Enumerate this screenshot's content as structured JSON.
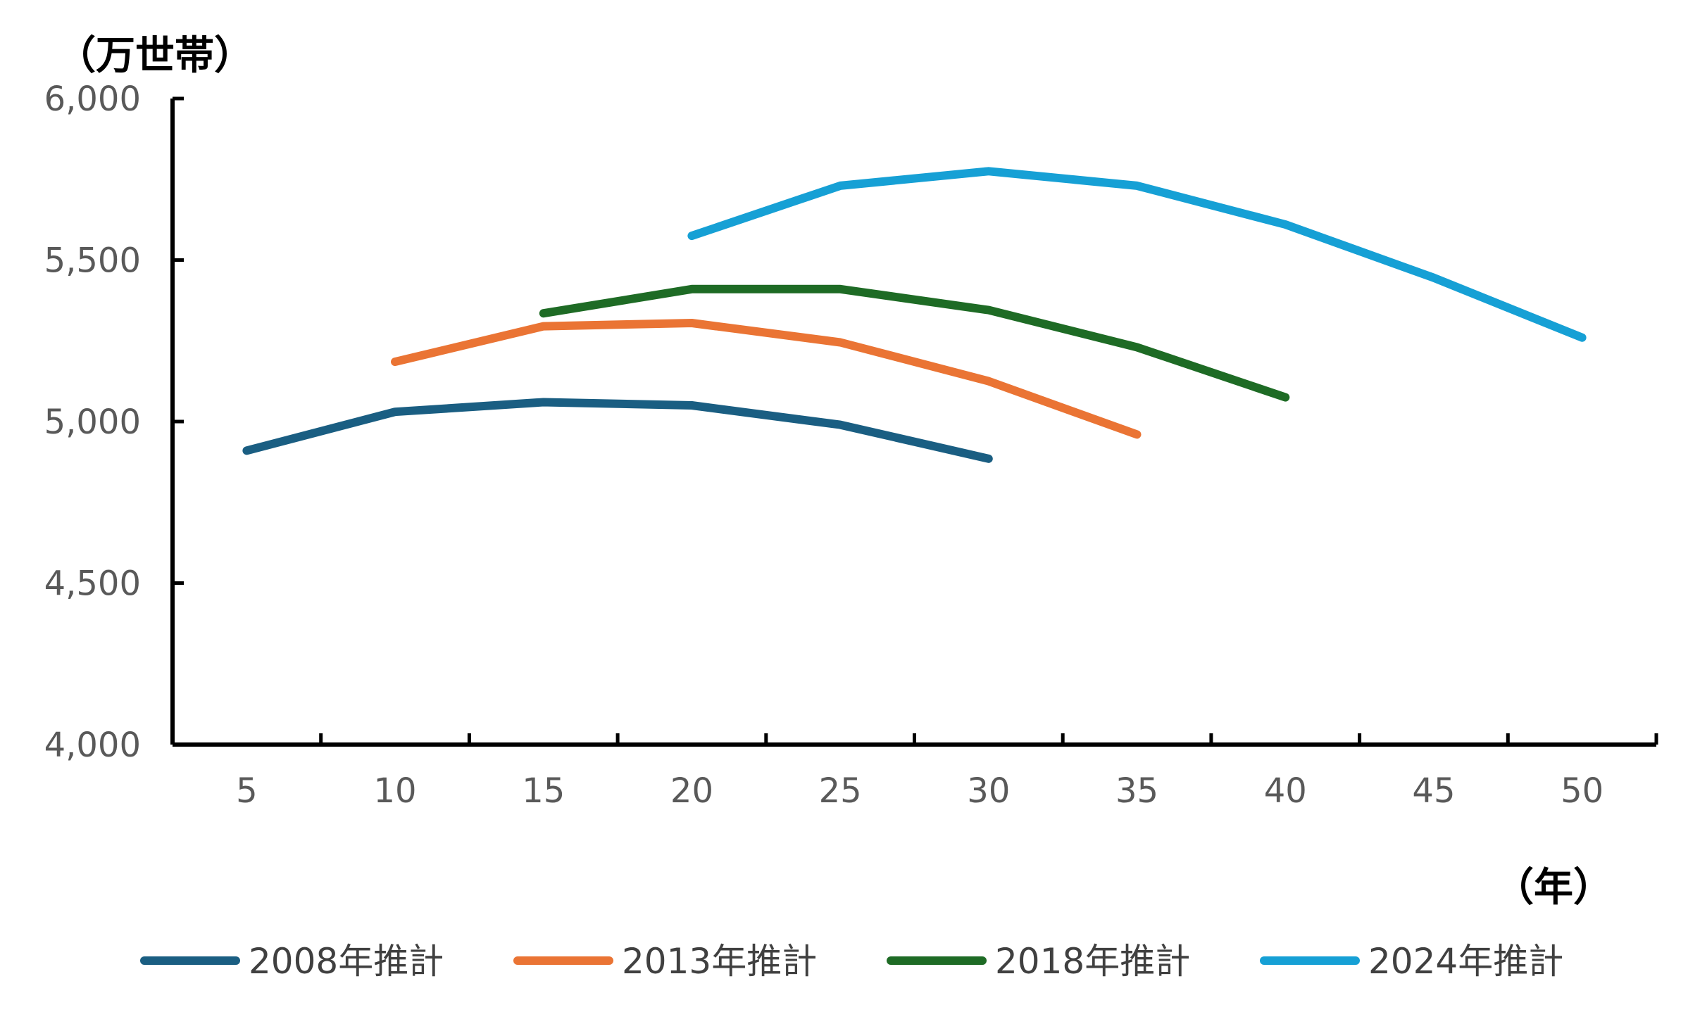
{
  "chart_data": {
    "type": "line",
    "y_unit": "（万世帯）",
    "x_unit": "（年）",
    "x": [
      "5",
      "10",
      "15",
      "20",
      "25",
      "30",
      "35",
      "40",
      "45",
      "50"
    ],
    "y_ticks": [
      "4,000",
      "4,500",
      "5,000",
      "5,500",
      "6,000"
    ],
    "ylim": [
      4000,
      6000
    ],
    "grid": false,
    "legend_position": "bottom",
    "series": [
      {
        "name": "2008年推計",
        "color": "#1a5e82",
        "values": [
          4910,
          5030,
          5060,
          5050,
          4990,
          4885,
          null,
          null,
          null,
          null
        ]
      },
      {
        "name": "2013年推計",
        "color": "#ea7434",
        "values": [
          null,
          5185,
          5295,
          5305,
          5245,
          5125,
          4960,
          null,
          null,
          null
        ]
      },
      {
        "name": "2018年推計",
        "color": "#1e6b25",
        "values": [
          null,
          null,
          5335,
          5410,
          5410,
          5345,
          5230,
          5075,
          null,
          null
        ]
      },
      {
        "name": "2024年推計",
        "color": "#16a0d5",
        "values": [
          null,
          null,
          null,
          5575,
          5730,
          5775,
          5730,
          5610,
          5445,
          5260
        ]
      }
    ]
  }
}
